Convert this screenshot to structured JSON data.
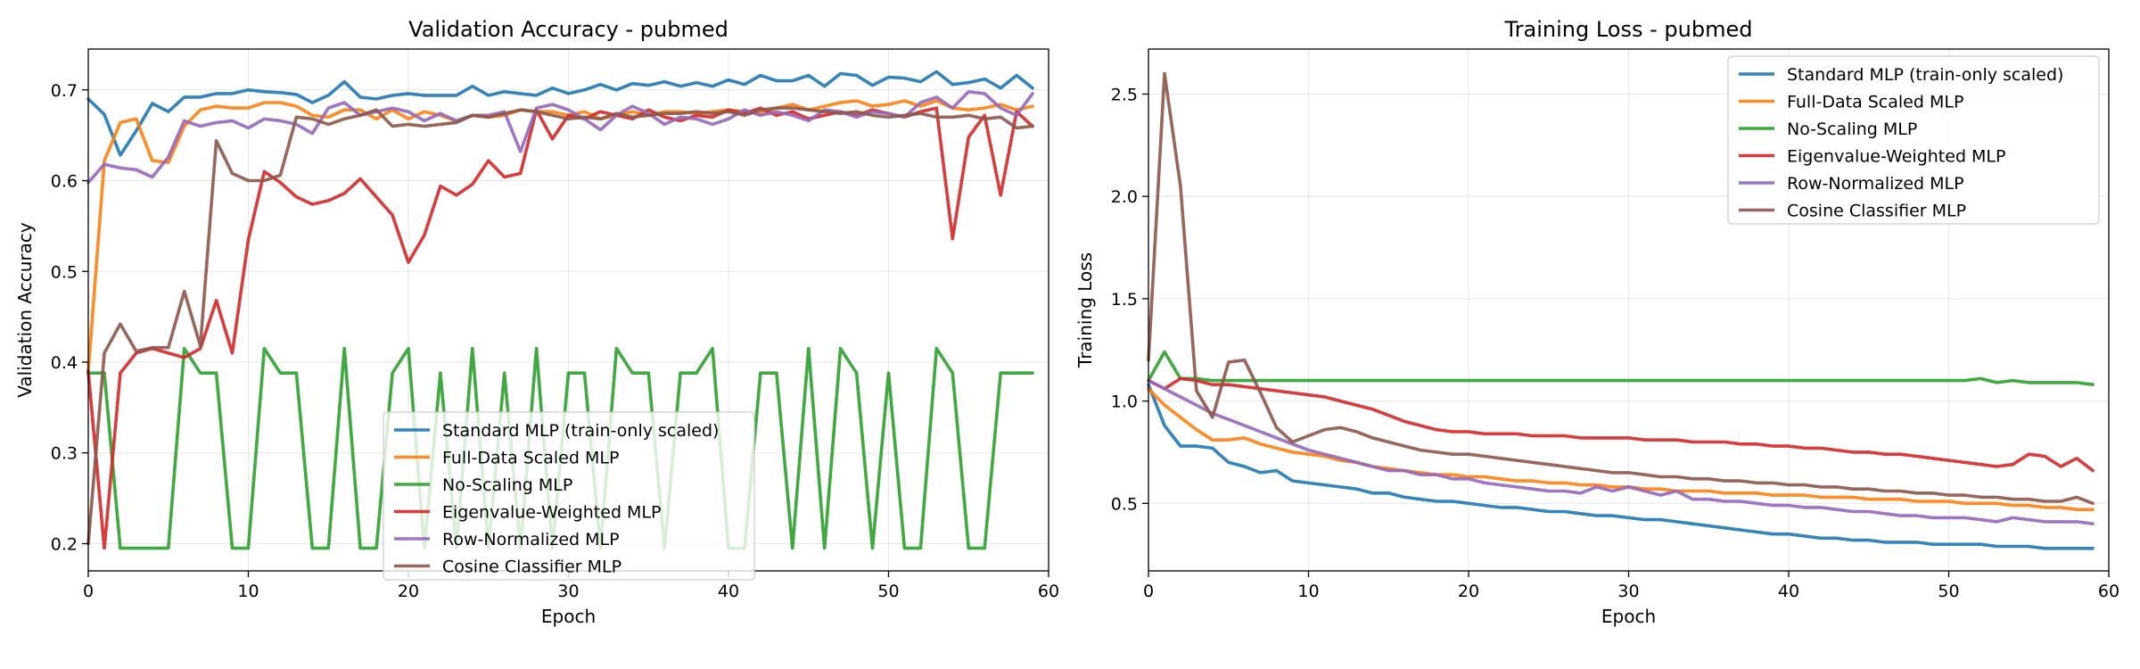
{
  "chart_data": [
    {
      "type": "line",
      "title": "Validation Accuracy - pubmed",
      "xlabel": "Epoch",
      "ylabel": "Validation Accuracy",
      "xlim": [
        0,
        60
      ],
      "ylim": [
        0.17,
        0.745
      ],
      "xticks": [
        0,
        10,
        20,
        30,
        40,
        50,
        60
      ],
      "yticks": [
        0.2,
        0.3,
        0.4,
        0.5,
        0.6,
        0.7
      ],
      "grid": true,
      "legend": "lower-center",
      "series": [
        {
          "name": "Standard MLP (train-only scaled)",
          "color": "#1f77b4",
          "values": [
            0.69,
            0.673,
            0.628,
            0.655,
            0.685,
            0.676,
            0.692,
            0.692,
            0.696,
            0.696,
            0.7,
            0.698,
            0.697,
            0.695,
            0.686,
            0.694,
            0.709,
            0.692,
            0.69,
            0.694,
            0.696,
            0.694,
            0.694,
            0.694,
            0.704,
            0.694,
            0.698,
            0.696,
            0.694,
            0.702,
            0.696,
            0.7,
            0.706,
            0.7,
            0.707,
            0.705,
            0.709,
            0.704,
            0.708,
            0.704,
            0.711,
            0.706,
            0.716,
            0.71,
            0.71,
            0.716,
            0.704,
            0.718,
            0.716,
            0.705,
            0.714,
            0.713,
            0.709,
            0.72,
            0.706,
            0.708,
            0.712,
            0.702,
            0.716,
            0.702
          ]
        },
        {
          "name": "Full-Data Scaled MLP",
          "color": "#ff7f0e",
          "values": [
            0.39,
            0.622,
            0.664,
            0.668,
            0.622,
            0.62,
            0.66,
            0.678,
            0.682,
            0.68,
            0.68,
            0.686,
            0.686,
            0.682,
            0.672,
            0.67,
            0.678,
            0.678,
            0.668,
            0.678,
            0.668,
            0.676,
            0.672,
            0.666,
            0.672,
            0.67,
            0.672,
            0.678,
            0.676,
            0.676,
            0.672,
            0.676,
            0.668,
            0.672,
            0.676,
            0.672,
            0.676,
            0.676,
            0.674,
            0.676,
            0.678,
            0.676,
            0.674,
            0.68,
            0.684,
            0.678,
            0.682,
            0.686,
            0.688,
            0.682,
            0.684,
            0.688,
            0.682,
            0.688,
            0.68,
            0.678,
            0.68,
            0.684,
            0.678,
            0.682
          ]
        },
        {
          "name": "No-Scaling MLP",
          "color": "#2ca02c",
          "values": [
            0.388,
            0.388,
            0.195,
            0.195,
            0.195,
            0.195,
            0.415,
            0.388,
            0.388,
            0.195,
            0.195,
            0.415,
            0.388,
            0.388,
            0.195,
            0.195,
            0.415,
            0.195,
            0.195,
            0.388,
            0.415,
            0.195,
            0.388,
            0.195,
            0.415,
            0.195,
            0.388,
            0.195,
            0.415,
            0.195,
            0.388,
            0.388,
            0.195,
            0.415,
            0.388,
            0.388,
            0.195,
            0.388,
            0.388,
            0.415,
            0.195,
            0.195,
            0.388,
            0.388,
            0.195,
            0.415,
            0.195,
            0.415,
            0.388,
            0.195,
            0.388,
            0.195,
            0.195,
            0.415,
            0.388,
            0.195,
            0.195,
            0.388,
            0.388,
            0.388
          ]
        },
        {
          "name": "Eigenvalue-Weighted MLP",
          "color": "#d62728",
          "values": [
            0.39,
            0.195,
            0.388,
            0.41,
            0.415,
            0.41,
            0.405,
            0.415,
            0.468,
            0.41,
            0.535,
            0.61,
            0.598,
            0.582,
            0.574,
            0.578,
            0.586,
            0.602,
            0.582,
            0.562,
            0.51,
            0.54,
            0.594,
            0.584,
            0.596,
            0.622,
            0.604,
            0.608,
            0.678,
            0.646,
            0.672,
            0.668,
            0.676,
            0.672,
            0.668,
            0.678,
            0.67,
            0.666,
            0.672,
            0.67,
            0.678,
            0.674,
            0.68,
            0.672,
            0.676,
            0.668,
            0.672,
            0.676,
            0.672,
            0.678,
            0.674,
            0.67,
            0.676,
            0.68,
            0.536,
            0.648,
            0.672,
            0.584,
            0.676,
            0.66
          ]
        },
        {
          "name": "Row-Normalized MLP",
          "color": "#9467bd",
          "values": [
            0.598,
            0.618,
            0.614,
            0.612,
            0.604,
            0.626,
            0.666,
            0.66,
            0.664,
            0.666,
            0.658,
            0.668,
            0.666,
            0.662,
            0.652,
            0.68,
            0.686,
            0.672,
            0.676,
            0.68,
            0.676,
            0.666,
            0.674,
            0.666,
            0.672,
            0.672,
            0.676,
            0.632,
            0.68,
            0.684,
            0.678,
            0.668,
            0.656,
            0.672,
            0.682,
            0.674,
            0.662,
            0.67,
            0.668,
            0.662,
            0.668,
            0.678,
            0.672,
            0.676,
            0.672,
            0.666,
            0.678,
            0.676,
            0.67,
            0.676,
            0.674,
            0.67,
            0.686,
            0.692,
            0.68,
            0.698,
            0.696,
            0.68,
            0.672,
            0.696
          ]
        },
        {
          "name": "Cosine Classifier MLP",
          "color": "#8c564b",
          "values": [
            0.2,
            0.41,
            0.442,
            0.412,
            0.416,
            0.416,
            0.478,
            0.418,
            0.644,
            0.608,
            0.6,
            0.6,
            0.606,
            0.67,
            0.668,
            0.662,
            0.668,
            0.672,
            0.678,
            0.66,
            0.662,
            0.66,
            0.662,
            0.664,
            0.672,
            0.67,
            0.674,
            0.678,
            0.676,
            0.672,
            0.668,
            0.67,
            0.668,
            0.674,
            0.67,
            0.672,
            0.674,
            0.674,
            0.676,
            0.674,
            0.676,
            0.672,
            0.678,
            0.68,
            0.68,
            0.678,
            0.676,
            0.674,
            0.676,
            0.672,
            0.67,
            0.672,
            0.674,
            0.67,
            0.67,
            0.672,
            0.668,
            0.67,
            0.658,
            0.66
          ]
        }
      ]
    },
    {
      "type": "line",
      "title": "Training Loss - pubmed",
      "xlabel": "Epoch",
      "ylabel": "Training Loss",
      "xlim": [
        0,
        60
      ],
      "ylim": [
        0.17,
        2.72
      ],
      "xticks": [
        0,
        10,
        20,
        30,
        40,
        50,
        60
      ],
      "yticks": [
        0.5,
        1.0,
        1.5,
        2.0,
        2.5
      ],
      "ytick_labels": [
        "0.5",
        "1.0",
        "1.5",
        "2.0",
        "2.5"
      ],
      "grid": true,
      "legend": "top-right",
      "series": [
        {
          "name": "Standard MLP (train-only scaled)",
          "color": "#1f77b4",
          "values": [
            1.08,
            0.88,
            0.78,
            0.78,
            0.77,
            0.7,
            0.68,
            0.65,
            0.66,
            0.61,
            0.6,
            0.59,
            0.58,
            0.57,
            0.55,
            0.55,
            0.53,
            0.52,
            0.51,
            0.51,
            0.5,
            0.49,
            0.48,
            0.48,
            0.47,
            0.46,
            0.46,
            0.45,
            0.44,
            0.44,
            0.43,
            0.42,
            0.42,
            0.41,
            0.4,
            0.39,
            0.38,
            0.37,
            0.36,
            0.35,
            0.35,
            0.34,
            0.33,
            0.33,
            0.32,
            0.32,
            0.31,
            0.31,
            0.31,
            0.3,
            0.3,
            0.3,
            0.3,
            0.29,
            0.29,
            0.29,
            0.28,
            0.28,
            0.28,
            0.28
          ]
        },
        {
          "name": "Full-Data Scaled MLP",
          "color": "#ff7f0e",
          "values": [
            1.06,
            0.98,
            0.92,
            0.86,
            0.81,
            0.81,
            0.82,
            0.79,
            0.77,
            0.75,
            0.74,
            0.73,
            0.71,
            0.7,
            0.68,
            0.67,
            0.66,
            0.65,
            0.64,
            0.64,
            0.63,
            0.63,
            0.62,
            0.61,
            0.61,
            0.6,
            0.6,
            0.59,
            0.59,
            0.58,
            0.58,
            0.57,
            0.57,
            0.56,
            0.56,
            0.56,
            0.55,
            0.55,
            0.55,
            0.54,
            0.54,
            0.54,
            0.53,
            0.53,
            0.53,
            0.52,
            0.52,
            0.52,
            0.51,
            0.51,
            0.51,
            0.5,
            0.5,
            0.5,
            0.49,
            0.49,
            0.48,
            0.48,
            0.47,
            0.47
          ]
        },
        {
          "name": "No-Scaling MLP",
          "color": "#2ca02c",
          "values": [
            1.1,
            1.24,
            1.11,
            1.11,
            1.1,
            1.1,
            1.1,
            1.1,
            1.1,
            1.1,
            1.1,
            1.1,
            1.1,
            1.1,
            1.1,
            1.1,
            1.1,
            1.1,
            1.1,
            1.1,
            1.1,
            1.1,
            1.1,
            1.1,
            1.1,
            1.1,
            1.1,
            1.1,
            1.1,
            1.1,
            1.1,
            1.1,
            1.1,
            1.1,
            1.1,
            1.1,
            1.1,
            1.1,
            1.1,
            1.1,
            1.1,
            1.1,
            1.1,
            1.1,
            1.1,
            1.1,
            1.1,
            1.1,
            1.1,
            1.1,
            1.1,
            1.1,
            1.11,
            1.09,
            1.1,
            1.09,
            1.09,
            1.09,
            1.09,
            1.08
          ]
        },
        {
          "name": "Eigenvalue-Weighted MLP",
          "color": "#d62728",
          "values": [
            1.1,
            1.06,
            1.11,
            1.1,
            1.08,
            1.08,
            1.07,
            1.06,
            1.05,
            1.04,
            1.03,
            1.02,
            1.0,
            0.98,
            0.96,
            0.93,
            0.9,
            0.88,
            0.86,
            0.85,
            0.85,
            0.84,
            0.84,
            0.84,
            0.83,
            0.83,
            0.83,
            0.82,
            0.82,
            0.82,
            0.82,
            0.81,
            0.81,
            0.81,
            0.8,
            0.8,
            0.8,
            0.79,
            0.79,
            0.78,
            0.78,
            0.77,
            0.77,
            0.76,
            0.75,
            0.75,
            0.74,
            0.74,
            0.73,
            0.72,
            0.71,
            0.7,
            0.69,
            0.68,
            0.69,
            0.74,
            0.73,
            0.68,
            0.72,
            0.66
          ]
        },
        {
          "name": "Row-Normalized MLP",
          "color": "#9467bd",
          "values": [
            1.1,
            1.06,
            1.02,
            0.98,
            0.94,
            0.91,
            0.88,
            0.85,
            0.82,
            0.79,
            0.76,
            0.74,
            0.72,
            0.7,
            0.68,
            0.66,
            0.66,
            0.64,
            0.64,
            0.62,
            0.62,
            0.6,
            0.59,
            0.58,
            0.57,
            0.56,
            0.56,
            0.55,
            0.58,
            0.56,
            0.58,
            0.56,
            0.54,
            0.56,
            0.52,
            0.52,
            0.51,
            0.51,
            0.5,
            0.49,
            0.49,
            0.48,
            0.48,
            0.47,
            0.46,
            0.46,
            0.45,
            0.44,
            0.44,
            0.43,
            0.43,
            0.43,
            0.42,
            0.41,
            0.43,
            0.42,
            0.41,
            0.41,
            0.41,
            0.4
          ]
        },
        {
          "name": "Cosine Classifier MLP",
          "color": "#8c564b",
          "values": [
            1.2,
            2.6,
            2.05,
            1.05,
            0.92,
            1.19,
            1.2,
            1.04,
            0.87,
            0.8,
            0.83,
            0.86,
            0.87,
            0.85,
            0.82,
            0.8,
            0.78,
            0.76,
            0.75,
            0.74,
            0.74,
            0.73,
            0.72,
            0.71,
            0.7,
            0.69,
            0.68,
            0.67,
            0.66,
            0.65,
            0.65,
            0.64,
            0.63,
            0.63,
            0.62,
            0.62,
            0.61,
            0.61,
            0.6,
            0.6,
            0.59,
            0.59,
            0.58,
            0.58,
            0.57,
            0.57,
            0.56,
            0.56,
            0.55,
            0.55,
            0.54,
            0.54,
            0.53,
            0.53,
            0.52,
            0.52,
            0.51,
            0.51,
            0.53,
            0.5
          ]
        }
      ]
    }
  ]
}
